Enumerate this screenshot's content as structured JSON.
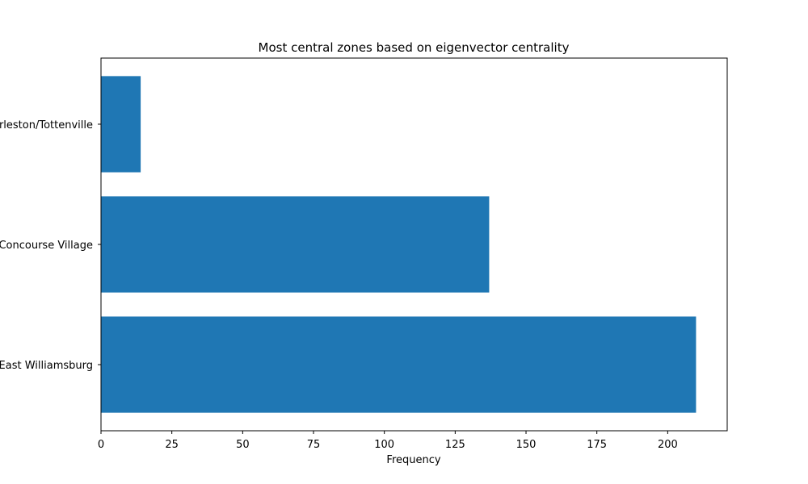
{
  "chart_data": {
    "type": "bar",
    "orientation": "horizontal",
    "title": "Most central zones based on eigenvector centrality",
    "xlabel": "Frequency",
    "ylabel": "",
    "categories": [
      "East Williamsburg",
      "Concourse Village",
      "Charleston/Tottenville"
    ],
    "values": [
      210,
      137,
      14
    ],
    "xlim": [
      0,
      221
    ],
    "xticks": [
      "0",
      "25",
      "50",
      "75",
      "100",
      "125",
      "150",
      "175",
      "200"
    ],
    "grid": false,
    "bar_color": "#1f77b4"
  }
}
